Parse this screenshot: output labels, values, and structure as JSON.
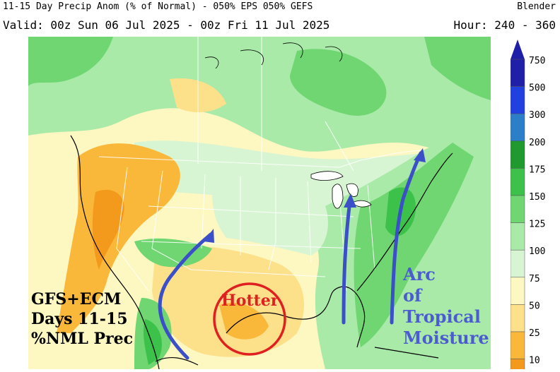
{
  "header": {
    "title": "11-15 Day Precip Anom (% of Normal) - 050% EPS 050% GEFS",
    "valid": "Valid: 00z Sun 06 Jul 2025 - 00z Fri 11 Jul 2025",
    "model": "Blender",
    "hour": "Hour: 240 - 360"
  },
  "legend": {
    "levels": [
      "750",
      "500",
      "300",
      "200",
      "175",
      "150",
      "125",
      "100",
      "75",
      "50",
      "25",
      "10"
    ],
    "colors": {
      "c750": "#1f1fa8",
      "c500": "#2040e0",
      "c300": "#2a7fc8",
      "c200": "#1e9a2e",
      "c175": "#3cc24a",
      "c150": "#6fd672",
      "c125": "#a9eaa9",
      "c100": "#d8f5d3",
      "c75": "#fdf7c2",
      "c50": "#fde08a",
      "c25": "#f9b83a",
      "c10": "#f39a1c"
    }
  },
  "annotations": {
    "left_line1": "GFS+ECM",
    "left_line2": "Days 11-15",
    "left_line3": "%NML Prec",
    "hotter": "Hotter",
    "arc1": "Arc",
    "arc2": "of",
    "arc3": "Tropical",
    "arc4": "Moisture"
  },
  "annotation_colors": {
    "hotter_circle": "#e02020",
    "arrows": "#3a4fc8",
    "arc_text": "#4a5cd0"
  }
}
